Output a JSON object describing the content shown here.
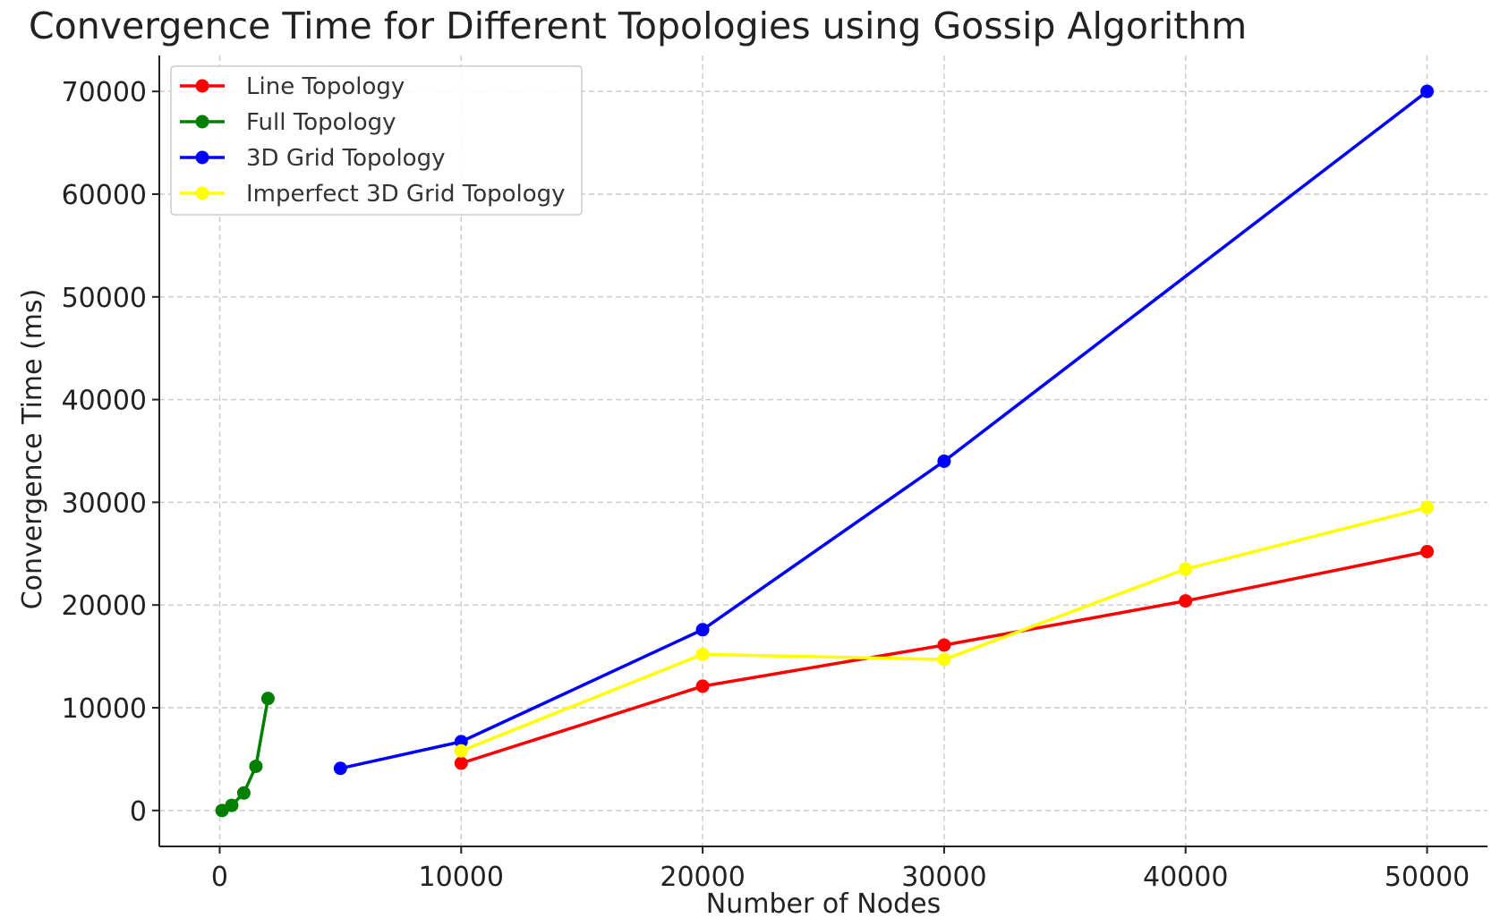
{
  "chart_data": {
    "type": "line",
    "title": "Convergence Time for Different Topologies using Gossip Algorithm",
    "xlabel": "Number of Nodes",
    "ylabel": "Convergence Time (ms)",
    "xlim": [
      -2500,
      52500
    ],
    "ylim": [
      -3500,
      73500
    ],
    "xticks": [
      0,
      10000,
      20000,
      30000,
      40000,
      50000
    ],
    "yticks": [
      0,
      10000,
      20000,
      30000,
      40000,
      50000,
      60000,
      70000
    ],
    "grid": true,
    "legend_position": "top-left",
    "series": [
      {
        "name": "Line Topology",
        "color": "#ff0000",
        "points": [
          [
            10000,
            4600
          ],
          [
            20000,
            12100
          ],
          [
            30000,
            16100
          ],
          [
            40000,
            20400
          ],
          [
            50000,
            25200
          ]
        ]
      },
      {
        "name": "Full Topology",
        "color": "#008000",
        "points": [
          [
            100,
            0
          ],
          [
            500,
            500
          ],
          [
            1000,
            1700
          ],
          [
            1500,
            4300
          ],
          [
            2000,
            10900
          ]
        ]
      },
      {
        "name": "3D Grid Topology",
        "color": "#0000ff",
        "points": [
          [
            5000,
            4100
          ],
          [
            10000,
            6700
          ],
          [
            20000,
            17600
          ],
          [
            30000,
            34000
          ],
          [
            50000,
            70000
          ]
        ]
      },
      {
        "name": "Imperfect 3D Grid Topology",
        "color": "#ffff00",
        "points": [
          [
            10000,
            5800
          ],
          [
            20000,
            15200
          ],
          [
            30000,
            14700
          ],
          [
            40000,
            23500
          ],
          [
            50000,
            29500
          ]
        ]
      }
    ]
  }
}
